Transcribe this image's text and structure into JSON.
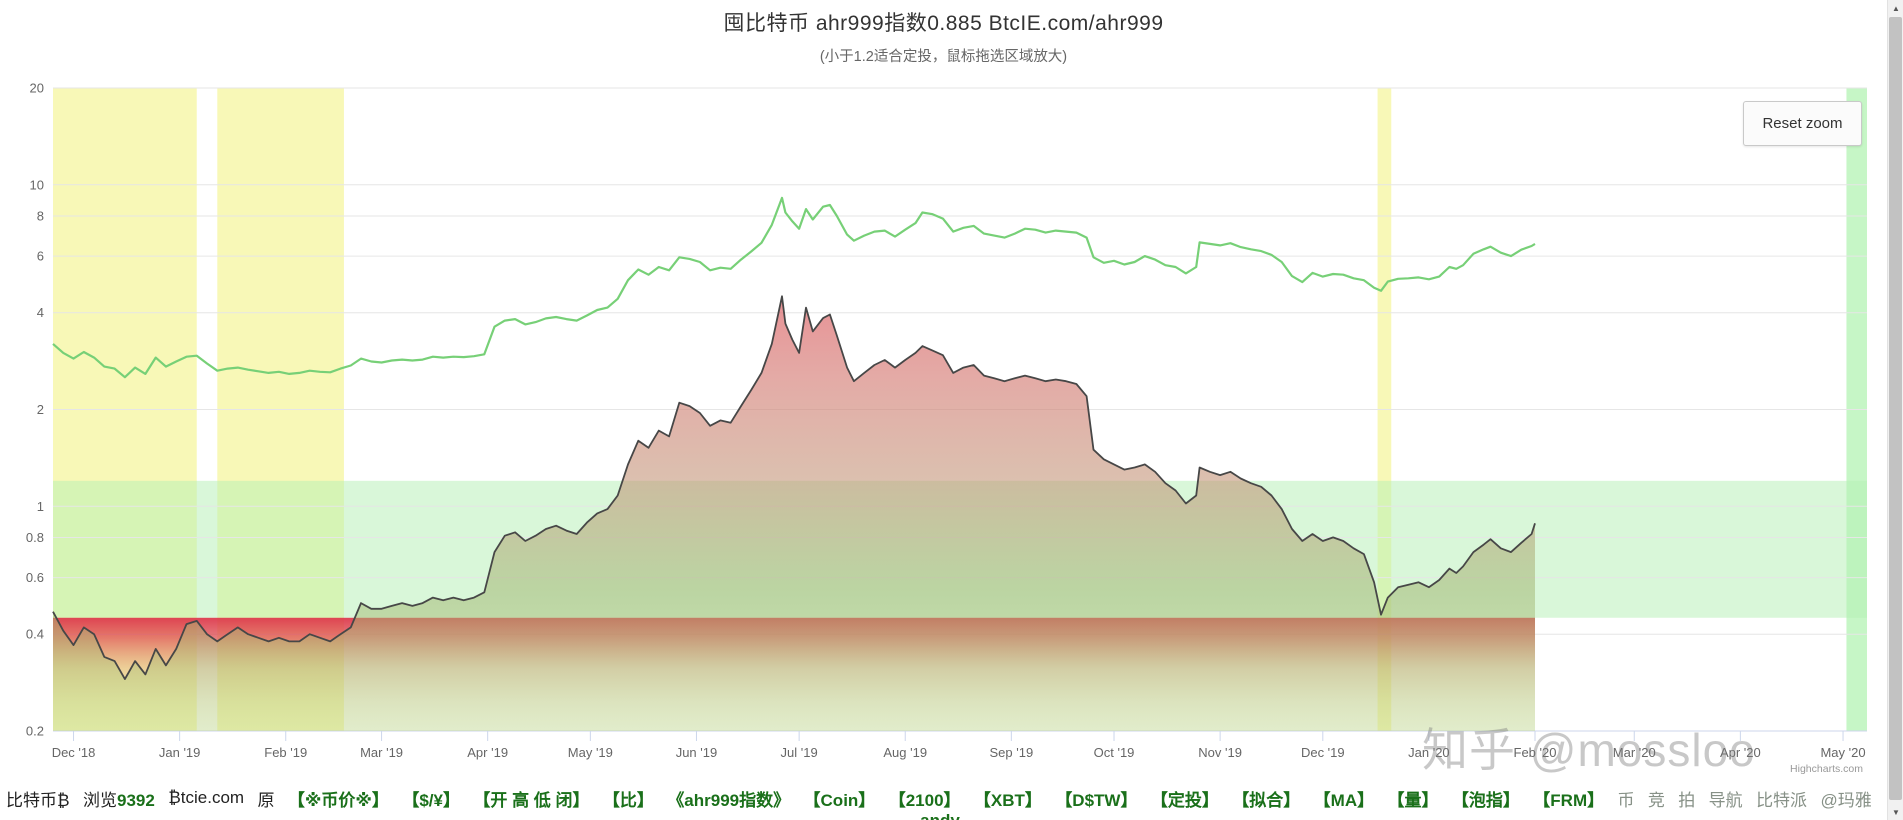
{
  "page": {
    "watermark": "知乎 @mossloo",
    "credits": "Highcharts.com",
    "partial_bottom_text": "andy"
  },
  "chart": {
    "title": "囤比特币 ahr999指数0.885 BtcIE.com/ahr999",
    "subtitle": "(小于1.2适合定投，鼠标拖选区域放大)",
    "reset_zoom_label": "Reset zoom"
  },
  "scrollbar": {
    "up": "▲",
    "down": "▼"
  },
  "chart_data": {
    "type": "line",
    "title": "囤比特币 ahr999指数0.885 BtcIE.com/ahr999",
    "subtitle": "(小于1.2适合定投，鼠标拖选区域放大)",
    "x_axis": {
      "type": "datetime",
      "min": "2018-11-25",
      "max": "2020-05-08",
      "ticks": [
        [
          "2018-12-01",
          "Dec '18"
        ],
        [
          "2019-01-01",
          "Jan '19"
        ],
        [
          "2019-02-01",
          "Feb '19"
        ],
        [
          "2019-03-01",
          "Mar '19"
        ],
        [
          "2019-04-01",
          "Apr '19"
        ],
        [
          "2019-05-01",
          "May '19"
        ],
        [
          "2019-06-01",
          "Jun '19"
        ],
        [
          "2019-07-01",
          "Jul '19"
        ],
        [
          "2019-08-01",
          "Aug '19"
        ],
        [
          "2019-09-01",
          "Sep '19"
        ],
        [
          "2019-10-01",
          "Oct '19"
        ],
        [
          "2019-11-01",
          "Nov '19"
        ],
        [
          "2019-12-01",
          "Dec '19"
        ],
        [
          "2020-01-01",
          "Jan '20"
        ],
        [
          "2020-02-01",
          "Feb '20"
        ],
        [
          "2020-03-01",
          "Mar '20"
        ],
        [
          "2020-04-01",
          "Apr '20"
        ],
        [
          "2020-05-01",
          "May '20"
        ]
      ]
    },
    "y_axis": {
      "type": "logarithmic",
      "min": 0.2,
      "max": 20,
      "ticks": [
        {
          "v": 20,
          "label": "20"
        },
        {
          "v": 10,
          "label": "10"
        },
        {
          "v": 8,
          "label": "8"
        },
        {
          "v": 6,
          "label": "6"
        },
        {
          "v": 4,
          "label": "4"
        },
        {
          "v": 2,
          "label": "2"
        },
        {
          "v": 1,
          "label": "1"
        },
        {
          "v": 0.8,
          "label": "0.8"
        },
        {
          "v": 0.6,
          "label": "0.6"
        },
        {
          "v": 0.4,
          "label": "0.4"
        },
        {
          "v": 0.2,
          "label": "0.2"
        }
      ]
    },
    "plot_bands_x": [
      {
        "name": "bottom-period-band-1",
        "from": "2018-11-25",
        "to": "2019-01-06",
        "color": "rgba(247,247,170,0.85)"
      },
      {
        "name": "bottom-period-band-2",
        "from": "2019-01-12",
        "to": "2019-02-18",
        "color": "rgba(247,247,170,0.85)"
      },
      {
        "name": "bottom-period-band-3",
        "from": "2019-12-17",
        "to": "2019-12-21",
        "color": "rgba(247,247,170,0.85)"
      },
      {
        "name": "right-edge-green-band",
        "from": "2020-05-02",
        "to": "2020-05-08",
        "color": "rgba(160,240,160,0.6)"
      }
    ],
    "plot_bands_y": [
      {
        "name": "dca-zone-band",
        "from": 0.45,
        "to": 1.2,
        "color": "rgba(180,240,180,0.5)"
      }
    ],
    "red_zone": {
      "below": 0.45,
      "spans_data_range_only": true
    },
    "grid": true,
    "legend": "none",
    "dates": [
      "2018-11-25",
      "2018-11-28",
      "2018-12-01",
      "2018-12-04",
      "2018-12-07",
      "2018-12-10",
      "2018-12-13",
      "2018-12-16",
      "2018-12-19",
      "2018-12-22",
      "2018-12-25",
      "2018-12-28",
      "2018-12-31",
      "2019-01-03",
      "2019-01-06",
      "2019-01-09",
      "2019-01-12",
      "2019-01-15",
      "2019-01-18",
      "2019-01-21",
      "2019-01-24",
      "2019-01-27",
      "2019-01-30",
      "2019-02-02",
      "2019-02-05",
      "2019-02-08",
      "2019-02-11",
      "2019-02-14",
      "2019-02-17",
      "2019-02-20",
      "2019-02-23",
      "2019-02-26",
      "2019-03-01",
      "2019-03-04",
      "2019-03-07",
      "2019-03-10",
      "2019-03-13",
      "2019-03-16",
      "2019-03-19",
      "2019-03-22",
      "2019-03-25",
      "2019-03-28",
      "2019-03-31",
      "2019-04-03",
      "2019-04-06",
      "2019-04-09",
      "2019-04-12",
      "2019-04-15",
      "2019-04-18",
      "2019-04-21",
      "2019-04-24",
      "2019-04-27",
      "2019-04-30",
      "2019-05-03",
      "2019-05-06",
      "2019-05-09",
      "2019-05-12",
      "2019-05-15",
      "2019-05-18",
      "2019-05-21",
      "2019-05-24",
      "2019-05-27",
      "2019-05-30",
      "2019-06-02",
      "2019-06-05",
      "2019-06-08",
      "2019-06-11",
      "2019-06-14",
      "2019-06-17",
      "2019-06-20",
      "2019-06-23",
      "2019-06-26",
      "2019-06-27",
      "2019-06-29",
      "2019-07-01",
      "2019-07-03",
      "2019-07-05",
      "2019-07-08",
      "2019-07-10",
      "2019-07-12",
      "2019-07-15",
      "2019-07-17",
      "2019-07-20",
      "2019-07-23",
      "2019-07-26",
      "2019-07-29",
      "2019-08-01",
      "2019-08-04",
      "2019-08-06",
      "2019-08-09",
      "2019-08-12",
      "2019-08-15",
      "2019-08-18",
      "2019-08-21",
      "2019-08-24",
      "2019-08-27",
      "2019-08-30",
      "2019-09-02",
      "2019-09-05",
      "2019-09-08",
      "2019-09-11",
      "2019-09-14",
      "2019-09-17",
      "2019-09-20",
      "2019-09-23",
      "2019-09-25",
      "2019-09-28",
      "2019-10-01",
      "2019-10-04",
      "2019-10-07",
      "2019-10-10",
      "2019-10-13",
      "2019-10-16",
      "2019-10-19",
      "2019-10-22",
      "2019-10-25",
      "2019-10-26",
      "2019-10-29",
      "2019-11-01",
      "2019-11-04",
      "2019-11-07",
      "2019-11-10",
      "2019-11-13",
      "2019-11-16",
      "2019-11-19",
      "2019-11-22",
      "2019-11-25",
      "2019-11-28",
      "2019-12-01",
      "2019-12-04",
      "2019-12-07",
      "2019-12-10",
      "2019-12-13",
      "2019-12-16",
      "2019-12-18",
      "2019-12-20",
      "2019-12-23",
      "2019-12-26",
      "2019-12-29",
      "2020-01-01",
      "2020-01-04",
      "2020-01-07",
      "2020-01-09",
      "2020-01-11",
      "2020-01-14",
      "2020-01-17",
      "2020-01-19",
      "2020-01-22",
      "2020-01-25",
      "2020-01-28",
      "2020-01-31",
      "2020-02-01"
    ],
    "series": [
      {
        "name": "green-price-line",
        "type": "line",
        "color": "#77d077",
        "width": 2.2,
        "values": [
          3.2,
          3.0,
          2.88,
          3.02,
          2.9,
          2.72,
          2.68,
          2.52,
          2.7,
          2.58,
          2.9,
          2.72,
          2.82,
          2.92,
          2.94,
          2.78,
          2.64,
          2.68,
          2.7,
          2.66,
          2.63,
          2.6,
          2.62,
          2.58,
          2.6,
          2.64,
          2.62,
          2.61,
          2.68,
          2.74,
          2.88,
          2.82,
          2.8,
          2.84,
          2.86,
          2.84,
          2.86,
          2.92,
          2.9,
          2.92,
          2.91,
          2.93,
          2.97,
          3.62,
          3.78,
          3.82,
          3.68,
          3.74,
          3.84,
          3.88,
          3.82,
          3.78,
          3.92,
          4.08,
          4.15,
          4.42,
          5.05,
          5.45,
          5.25,
          5.55,
          5.42,
          5.95,
          5.88,
          5.75,
          5.42,
          5.52,
          5.48,
          5.85,
          6.2,
          6.6,
          7.5,
          9.1,
          8.2,
          7.7,
          7.3,
          8.4,
          7.8,
          8.55,
          8.65,
          8.0,
          7.0,
          6.7,
          6.95,
          7.15,
          7.2,
          6.9,
          7.25,
          7.6,
          8.2,
          8.1,
          7.85,
          7.15,
          7.35,
          7.45,
          7.05,
          6.95,
          6.85,
          7.05,
          7.3,
          7.25,
          7.1,
          7.2,
          7.15,
          7.1,
          6.85,
          5.95,
          5.72,
          5.8,
          5.65,
          5.75,
          6.0,
          5.85,
          5.62,
          5.55,
          5.3,
          5.55,
          6.62,
          6.55,
          6.48,
          6.58,
          6.4,
          6.3,
          6.22,
          6.05,
          5.75,
          5.2,
          4.98,
          5.32,
          5.18,
          5.28,
          5.25,
          5.12,
          5.05,
          4.78,
          4.68,
          5.0,
          5.1,
          5.12,
          5.15,
          5.08,
          5.18,
          5.55,
          5.48,
          5.62,
          6.1,
          6.3,
          6.42,
          6.15,
          6.0,
          6.28,
          6.45,
          6.55
        ]
      },
      {
        "name": "ahr999指数",
        "type": "area",
        "color": "#474747",
        "width": 1.8,
        "current_value": 0.885,
        "values": [
          0.47,
          0.41,
          0.37,
          0.42,
          0.4,
          0.34,
          0.33,
          0.29,
          0.33,
          0.3,
          0.36,
          0.32,
          0.36,
          0.43,
          0.44,
          0.4,
          0.38,
          0.4,
          0.42,
          0.4,
          0.39,
          0.38,
          0.39,
          0.38,
          0.38,
          0.4,
          0.39,
          0.38,
          0.4,
          0.42,
          0.5,
          0.48,
          0.48,
          0.49,
          0.5,
          0.49,
          0.5,
          0.52,
          0.51,
          0.52,
          0.51,
          0.52,
          0.54,
          0.72,
          0.81,
          0.83,
          0.78,
          0.81,
          0.85,
          0.87,
          0.84,
          0.82,
          0.89,
          0.95,
          0.98,
          1.08,
          1.35,
          1.6,
          1.52,
          1.72,
          1.65,
          2.1,
          2.05,
          1.95,
          1.78,
          1.85,
          1.82,
          2.05,
          2.3,
          2.6,
          3.2,
          4.5,
          3.7,
          3.3,
          3.0,
          4.15,
          3.5,
          3.85,
          3.95,
          3.4,
          2.7,
          2.45,
          2.6,
          2.75,
          2.85,
          2.7,
          2.85,
          3.0,
          3.15,
          3.05,
          2.95,
          2.6,
          2.7,
          2.75,
          2.55,
          2.5,
          2.45,
          2.5,
          2.55,
          2.5,
          2.45,
          2.48,
          2.45,
          2.4,
          2.2,
          1.5,
          1.4,
          1.35,
          1.3,
          1.32,
          1.35,
          1.28,
          1.18,
          1.12,
          1.02,
          1.08,
          1.32,
          1.28,
          1.25,
          1.28,
          1.22,
          1.18,
          1.15,
          1.08,
          0.98,
          0.85,
          0.78,
          0.82,
          0.78,
          0.8,
          0.78,
          0.74,
          0.71,
          0.58,
          0.46,
          0.52,
          0.56,
          0.57,
          0.58,
          0.56,
          0.59,
          0.64,
          0.62,
          0.65,
          0.72,
          0.76,
          0.79,
          0.74,
          0.72,
          0.77,
          0.82,
          0.885
        ]
      }
    ],
    "colors": {
      "gridline": "#e6e6e6",
      "axis_line": "#ccd6eb",
      "axis_label": "#666666",
      "area_gradient": [
        [
          0,
          "rgba(232,70,90,0.85)"
        ],
        [
          0.22,
          "rgba(230,85,100,0.78)"
        ],
        [
          0.45,
          "rgba(213,125,118,0.65)"
        ],
        [
          0.62,
          "rgba(193,148,118,0.58)"
        ],
        [
          0.78,
          "rgba(158,178,108,0.50)"
        ],
        [
          1,
          "rgba(190,214,140,0.45)"
        ]
      ],
      "red_zone_gradient": [
        [
          0,
          "rgba(220,54,74,0.93)"
        ],
        [
          0.18,
          "rgba(221,75,78,0.72)"
        ],
        [
          0.45,
          "rgba(213,124,86,0.32)"
        ],
        [
          0.75,
          "rgba(213,160,96,0.10)"
        ],
        [
          1,
          "rgba(213,170,100,0)"
        ]
      ]
    }
  },
  "bottom_bar": {
    "items": [
      [
        {
          "t": "比特币₿",
          "s": "plain"
        }
      ],
      [
        {
          "t": "浏览",
          "s": "plain"
        },
        {
          "t": "9392",
          "s": "link"
        }
      ],
      [
        {
          "t": "₿tcie.com",
          "s": "plain"
        }
      ],
      [
        {
          "t": "原",
          "s": "plain"
        }
      ],
      [
        {
          "t": "【※币价※】",
          "s": "link"
        }
      ],
      [
        {
          "t": "【$/¥】",
          "s": "link"
        }
      ],
      [
        {
          "t": "【开 高 低 闭】",
          "s": "link"
        }
      ],
      [
        {
          "t": "【比】",
          "s": "link"
        }
      ],
      [
        {
          "t": "《ahr999指数》",
          "s": "link"
        }
      ],
      [
        {
          "t": "【Coin】",
          "s": "link"
        }
      ],
      [
        {
          "t": "【2100】",
          "s": "link"
        }
      ],
      [
        {
          "t": "【XBT】",
          "s": "link"
        }
      ],
      [
        {
          "t": "【D$TW】",
          "s": "link"
        }
      ],
      [
        {
          "t": "【定投】",
          "s": "link"
        }
      ],
      [
        {
          "t": "【拟合】",
          "s": "link"
        }
      ],
      [
        {
          "t": "【MA】",
          "s": "link"
        }
      ],
      [
        {
          "t": "【量】",
          "s": "link"
        }
      ],
      [
        {
          "t": "【泡指】",
          "s": "link"
        }
      ],
      [
        {
          "t": "【FRM】",
          "s": "link"
        }
      ],
      [
        {
          "t": "币",
          "s": "muted"
        }
      ],
      [
        {
          "t": "竞",
          "s": "muted"
        }
      ],
      [
        {
          "t": "拍",
          "s": "muted"
        }
      ],
      [
        {
          "t": "导航",
          "s": "muted"
        }
      ],
      [
        {
          "t": "比特派",
          "s": "muted"
        }
      ],
      [
        {
          "t": "@玛雅",
          "s": "muted"
        }
      ]
    ]
  }
}
